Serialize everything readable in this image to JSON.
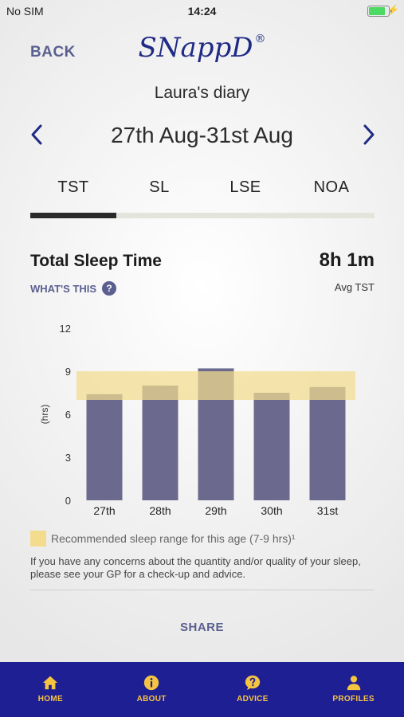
{
  "status_bar": {
    "carrier": "No SIM",
    "time": "14:24",
    "battery_level": 0.9
  },
  "header": {
    "back_label": "BACK",
    "logo_text": "SNappD",
    "logo_mark": "®",
    "title": "Laura's diary"
  },
  "week_nav": {
    "date_range": "27th Aug-31st Aug",
    "prev_icon": "chevron-left-icon",
    "next_icon": "chevron-right-icon"
  },
  "tabs": [
    {
      "label": "TST",
      "active": true
    },
    {
      "label": "SL",
      "active": false
    },
    {
      "label": "LSE",
      "active": false
    },
    {
      "label": "NOA",
      "active": false
    }
  ],
  "metric": {
    "title": "Total Sleep Time",
    "value": "8h 1m",
    "whats_this_label": "WHAT'S THIS",
    "help_glyph": "?",
    "avg_label": "Avg TST"
  },
  "chart_data": {
    "type": "bar",
    "categories": [
      "27th",
      "28th",
      "29th",
      "30th",
      "31st"
    ],
    "values": [
      7.4,
      8.0,
      9.2,
      7.5,
      7.9
    ],
    "ylabel": "(hrs)",
    "ylim": [
      0,
      12
    ],
    "yticks": [
      "0",
      "3",
      "6",
      "9",
      "12"
    ],
    "recommended_range": [
      7,
      9
    ],
    "bar_color": "#6b6a8e",
    "range_color": "#f3dc8e",
    "grid": false
  },
  "legend": {
    "label": "Recommended sleep range for this age (7-9 hrs)¹"
  },
  "disclaimer": "If you have any concerns about the quantity and/or quality of your sleep, please see your GP for a check-up and advice.",
  "share_label": "SHARE",
  "bottom_nav": [
    {
      "label": "HOME",
      "icon": "home-icon"
    },
    {
      "label": "ABOUT",
      "icon": "info-icon"
    },
    {
      "label": "ADVICE",
      "icon": "question-icon"
    },
    {
      "label": "PROFILES",
      "icon": "person-icon"
    }
  ],
  "colors": {
    "accent": "#5a5f8f",
    "brand_navy": "#1f1f94",
    "nav_yellow": "#f5c542",
    "chevron": "#1f2a85"
  }
}
